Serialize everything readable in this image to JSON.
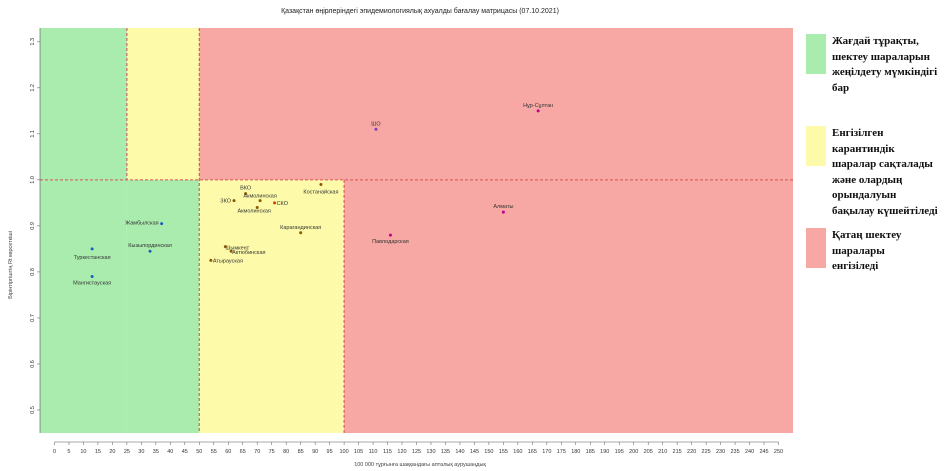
{
  "chart_data": {
    "type": "scatter",
    "title": "Қазақстан өңірлеріндегі эпидемиологиялық ахуалды бағалау матрицасы  (07.10.2021)",
    "xlabel": "100 000 тұрғынға шаққандағы апталық аурушаңдық",
    "ylabel": "Бірінтіргіштің Rt көрсеткіші",
    "xlim": [
      -5,
      255
    ],
    "ylim": [
      0.45,
      1.33
    ],
    "xticks": [
      0,
      5,
      10,
      15,
      20,
      25,
      30,
      35,
      40,
      45,
      50,
      55,
      60,
      65,
      70,
      75,
      80,
      85,
      90,
      95,
      100,
      105,
      110,
      115,
      120,
      125,
      130,
      135,
      140,
      145,
      150,
      155,
      160,
      165,
      170,
      175,
      180,
      185,
      190,
      195,
      200,
      205,
      210,
      215,
      220,
      225,
      230,
      235,
      240,
      245,
      250
    ],
    "xtick_labels": [
      "0",
      "5",
      "10",
      "15",
      "20",
      "25",
      "30",
      "35",
      "40",
      "45",
      "50",
      "55",
      "60",
      "65",
      "70",
      "75",
      "80",
      "85",
      "90",
      "95",
      "100",
      "105",
      "110",
      "115",
      "120",
      "125",
      "130",
      "135",
      "140",
      "145",
      "150",
      "155",
      "160",
      "165",
      "170",
      "175",
      "180",
      "185",
      "190",
      "195",
      "200",
      "205",
      "210",
      "215",
      "220",
      "225",
      "230",
      "235",
      "240",
      "245",
      "250"
    ],
    "yticks": [
      0.5,
      0.6,
      0.7,
      0.8,
      0.9,
      1.0,
      1.1,
      1.2,
      1.3
    ],
    "ytick_labels": [
      "0.5",
      "0.6",
      "0.7",
      "0.8",
      "0.9",
      "1.0",
      "1.1",
      "1.2",
      "1.3"
    ],
    "thresholds": {
      "x": [
        25,
        50,
        100
      ],
      "y": 1.0
    },
    "grid": false,
    "zones": [
      {
        "zone": "green",
        "x": [
          -5,
          25
        ],
        "y": [
          0.45,
          1.33
        ]
      },
      {
        "zone": "green",
        "x": [
          25,
          50
        ],
        "y": [
          0.45,
          1.0
        ]
      },
      {
        "zone": "yellow",
        "x": [
          25,
          50
        ],
        "y": [
          1.0,
          1.33
        ]
      },
      {
        "zone": "yellow",
        "x": [
          50,
          100
        ],
        "y": [
          0.45,
          1.0
        ]
      },
      {
        "zone": "red",
        "x": [
          50,
          255
        ],
        "y": [
          1.0,
          1.33
        ]
      },
      {
        "zone": "red",
        "x": [
          100,
          255
        ],
        "y": [
          0.45,
          1.0
        ]
      }
    ],
    "points": [
      {
        "label": "Нұр-Сұлтан",
        "x": 167,
        "y": 1.15,
        "color": "#c0008a",
        "anchor": "middle",
        "dx": 0,
        "dy": -4
      },
      {
        "label": "ШО",
        "x": 111,
        "y": 1.11,
        "color": "#7a3fbf",
        "anchor": "middle",
        "dx": 0,
        "dy": -4
      },
      {
        "label": "Алматы",
        "x": 155,
        "y": 0.93,
        "color": "#c0008a",
        "anchor": "middle",
        "dx": 0,
        "dy": -4
      },
      {
        "label": "Павлодарская",
        "x": 116,
        "y": 0.88,
        "color": "#c0008a",
        "anchor": "middle",
        "dx": 0,
        "dy": 8
      },
      {
        "label": "ВКО",
        "x": 66,
        "y": 0.97,
        "color": "#8a5a00",
        "anchor": "middle",
        "dx": 0,
        "dy": -4
      },
      {
        "label": "Костанайская",
        "x": 92,
        "y": 0.99,
        "color": "#8a5a00",
        "anchor": "middle",
        "dx": 0,
        "dy": 9
      },
      {
        "label": "ЗКО",
        "x": 62,
        "y": 0.955,
        "color": "#8a5a00",
        "anchor": "end",
        "dx": -3,
        "dy": 2
      },
      {
        "label": "Акмолинская",
        "x": 71,
        "y": 0.955,
        "color": "#8a5a00",
        "anchor": "middle",
        "dx": 0,
        "dy": -3
      },
      {
        "label": "Акмолинская",
        "x": 70,
        "y": 0.94,
        "color": "#8a5a00",
        "anchor": "middle",
        "dx": -3,
        "dy": 5
      },
      {
        "label": "СКО",
        "x": 76,
        "y": 0.95,
        "color": "#d04000",
        "anchor": "start",
        "dx": 2,
        "dy": 2
      },
      {
        "label": "Карагандинская",
        "x": 85,
        "y": 0.885,
        "color": "#8a5a00",
        "anchor": "middle",
        "dx": 0,
        "dy": -4
      },
      {
        "label": "Шымкент",
        "x": 59,
        "y": 0.855,
        "color": "#8a5a00",
        "anchor": "start",
        "dx": 0,
        "dy": 3
      },
      {
        "label": "Актюбинская",
        "x": 61,
        "y": 0.845,
        "color": "#8a5a00",
        "anchor": "start",
        "dx": 1,
        "dy": 3
      },
      {
        "label": "Атырауская",
        "x": 54,
        "y": 0.825,
        "color": "#8a5a00",
        "anchor": "start",
        "dx": 2,
        "dy": 2
      },
      {
        "label": "Жамбылская",
        "x": 37,
        "y": 0.905,
        "color": "#1f5fbf",
        "anchor": "end",
        "dx": -3,
        "dy": 1
      },
      {
        "label": "Туркестанская",
        "x": 13,
        "y": 0.85,
        "color": "#1f5fbf",
        "anchor": "middle",
        "dx": 0,
        "dy": 10
      },
      {
        "label": "Кызылординская",
        "x": 33,
        "y": 0.845,
        "color": "#1f5fbf",
        "anchor": "middle",
        "dx": 0,
        "dy": -4
      },
      {
        "label": "Мангистауская",
        "x": 13,
        "y": 0.79,
        "color": "#1f5fbf",
        "anchor": "middle",
        "dx": 0,
        "dy": 8
      }
    ]
  },
  "legend": [
    {
      "color": "#a9ecad",
      "text": "Жағдай тұрақты,\nшектеу шараларын\nжеңілдету мүмкіндігі\nбар"
    },
    {
      "color": "#fdfba9",
      "text": "Енгізілген\nкарантиндік\nшаралар сақталады\nжәне олардың\nорындалуын\nбақылау күшейтіледі"
    },
    {
      "color": "#f7a8a4",
      "text": "Қатаң шектеу\nшаралары\nенгізіледі"
    }
  ]
}
